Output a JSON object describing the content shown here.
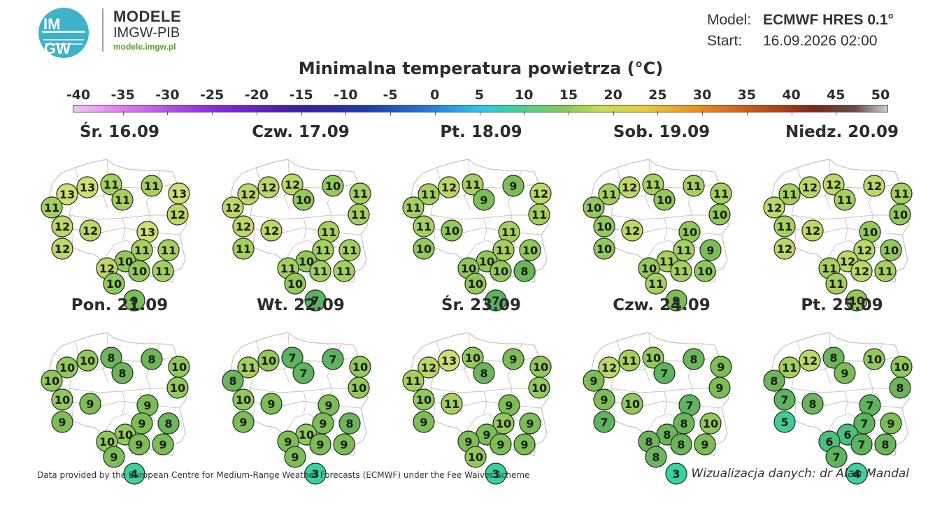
{
  "header": {
    "logo_text_top": "IM",
    "logo_text_bottom": "GW",
    "brand_title": "MODELE",
    "brand_subtitle": "IMGW-PIB",
    "brand_url": "modele.imgw.pl",
    "model_label": "Model:",
    "model_value": "ECMWF HRES 0.1°",
    "start_label": "Start:",
    "start_value": "16.09.2026 02:00"
  },
  "title": "Minimalna temperatura powietrza (°C)",
  "scale": {
    "min": -40,
    "max": 50,
    "ticks": [
      "-40",
      "-35",
      "-30",
      "-25",
      "-20",
      "-15",
      "-10",
      "-5",
      "0",
      "5",
      "10",
      "15",
      "20",
      "25",
      "30",
      "35",
      "40",
      "45",
      "50"
    ]
  },
  "colors": {
    "t3": "#35d49e",
    "t4": "#3ed19c",
    "t5": "#42cc96",
    "t6": "#4cbf7c",
    "t7": "#5cb45e",
    "t8": "#6cb55a",
    "t9": "#7cbd56",
    "t10": "#92c95a",
    "t11": "#a6d05e",
    "t12": "#bcd866",
    "t13": "#cfe072",
    "land": "#ffffff",
    "border": "#c4c4c4",
    "circle_stroke": "#1e2a1e"
  },
  "days": [
    {
      "label": "Śr. 16.09",
      "temps": [
        13,
        13,
        11,
        11,
        13,
        11,
        11,
        12,
        12,
        12,
        13,
        11,
        12,
        11,
        10,
        12,
        10,
        10,
        11,
        9
      ]
    },
    {
      "label": "Czw. 17.09",
      "temps": [
        12,
        12,
        12,
        10,
        11,
        12,
        10,
        11,
        12,
        12,
        11,
        11,
        11,
        11,
        10,
        11,
        11,
        10,
        11,
        7
      ]
    },
    {
      "label": "Pt. 18.09",
      "temps": [
        11,
        12,
        11,
        9,
        12,
        11,
        9,
        11,
        11,
        10,
        11,
        11,
        10,
        10,
        10,
        10,
        10,
        10,
        8,
        7
      ]
    },
    {
      "label": "Sob. 19.09",
      "temps": [
        11,
        12,
        11,
        11,
        11,
        10,
        10,
        10,
        10,
        12,
        10,
        11,
        10,
        9,
        11,
        10,
        11,
        11,
        10,
        9
      ]
    },
    {
      "label": "Niedz. 20.09",
      "temps": [
        11,
        12,
        12,
        12,
        11,
        12,
        11,
        10,
        11,
        12,
        10,
        12,
        12,
        10,
        12,
        11,
        12,
        11,
        11,
        10
      ]
    },
    {
      "label": "Pon. 21.09",
      "temps": [
        10,
        10,
        8,
        8,
        10,
        10,
        8,
        10,
        10,
        9,
        9,
        9,
        9,
        8,
        10,
        10,
        9,
        9,
        9,
        4
      ]
    },
    {
      "label": "Wt. 22.09",
      "temps": [
        11,
        10,
        7,
        7,
        10,
        8,
        7,
        10,
        10,
        9,
        9,
        9,
        9,
        8,
        10,
        9,
        9,
        9,
        9,
        3
      ]
    },
    {
      "label": "Śr. 23.09",
      "temps": [
        12,
        13,
        10,
        9,
        10,
        11,
        8,
        10,
        10,
        11,
        9,
        10,
        9,
        9,
        9,
        9,
        9,
        10,
        9,
        3
      ]
    },
    {
      "label": "Czw. 24.09",
      "temps": [
        12,
        11,
        10,
        8,
        9,
        9,
        7,
        9,
        9,
        10,
        7,
        8,
        7,
        10,
        8,
        8,
        8,
        8,
        9,
        3
      ]
    },
    {
      "label": "Pt. 25.09",
      "temps": [
        11,
        12,
        8,
        10,
        10,
        8,
        9,
        8,
        7,
        8,
        7,
        7,
        5,
        9,
        6,
        6,
        7,
        7,
        8,
        4
      ]
    }
  ],
  "footer": {
    "source": "Data provided by the European Centre for Medium-Range Weather Forecasts (ECMWF) under the Fee Waiver Scheme",
    "credit": "Wizualizacja danych: dr Alan Mandal"
  }
}
